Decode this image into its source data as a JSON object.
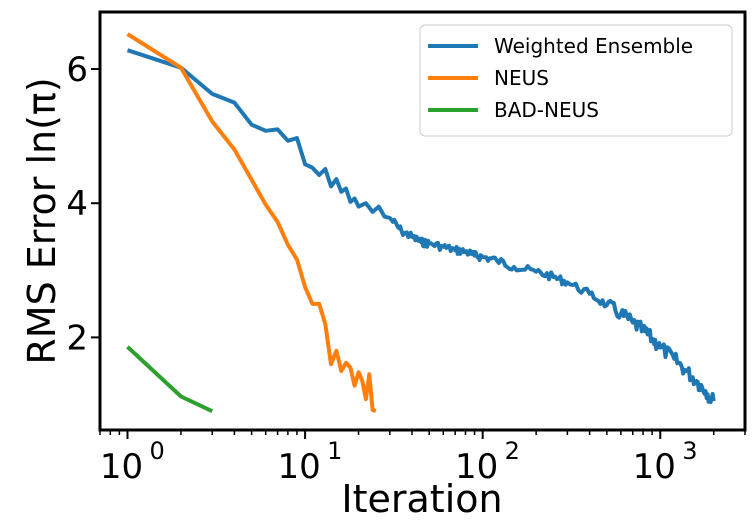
{
  "chart_data": {
    "type": "line",
    "title": "",
    "xlabel": "Iteration",
    "ylabel": "RMS Error ln(π)",
    "xscale": "log",
    "xlim": [
      0.7,
      3000
    ],
    "ylim": [
      0.62,
      6.85
    ],
    "x_ticks": [
      {
        "value": 1,
        "base": "10",
        "exp": "0"
      },
      {
        "value": 10,
        "base": "10",
        "exp": "1"
      },
      {
        "value": 100,
        "base": "10",
        "exp": "2"
      },
      {
        "value": 1000,
        "base": "10",
        "exp": "3"
      }
    ],
    "y_ticks": [
      {
        "value": 2,
        "label": "2"
      },
      {
        "value": 4,
        "label": "4"
      },
      {
        "value": 6,
        "label": "6"
      }
    ],
    "legend_position": "top-right",
    "series": [
      {
        "name": "Weighted Ensemble",
        "color": "#1f77b4",
        "x": [
          1,
          2,
          3,
          4,
          5,
          6,
          7,
          8,
          9,
          10,
          11,
          12,
          13,
          14,
          15,
          16,
          17,
          18,
          19,
          20,
          22,
          24,
          26,
          28,
          30,
          35,
          40,
          45,
          50,
          60,
          70,
          80,
          90,
          100,
          120,
          150,
          200,
          250,
          300,
          400,
          500,
          600,
          700,
          800,
          900,
          1000,
          1200,
          1400,
          1600,
          1800,
          2000
        ],
        "y": [
          6.28,
          6.02,
          5.63,
          5.5,
          5.17,
          5.08,
          5.1,
          4.93,
          4.97,
          4.58,
          4.53,
          4.42,
          4.51,
          4.25,
          4.36,
          4.17,
          4.22,
          4.02,
          4.07,
          3.95,
          4.0,
          3.87,
          3.95,
          3.8,
          3.78,
          3.58,
          3.5,
          3.42,
          3.4,
          3.35,
          3.3,
          3.28,
          3.22,
          3.2,
          3.15,
          3.05,
          2.98,
          2.9,
          2.82,
          2.65,
          2.48,
          2.35,
          2.22,
          2.1,
          1.98,
          1.85,
          1.68,
          1.5,
          1.35,
          1.2,
          1.05
        ]
      },
      {
        "name": "NEUS",
        "color": "#ff7f0e",
        "x": [
          1,
          2,
          3,
          4,
          5,
          6,
          7,
          8,
          9,
          10,
          11,
          12,
          13,
          14,
          15,
          16,
          17,
          18,
          19,
          20,
          21,
          22,
          23,
          24,
          25
        ],
        "y": [
          6.52,
          6.02,
          5.22,
          4.8,
          4.35,
          3.98,
          3.72,
          3.38,
          3.16,
          2.75,
          2.5,
          2.5,
          2.2,
          1.6,
          1.8,
          1.5,
          1.62,
          1.55,
          1.28,
          1.48,
          1.35,
          1.08,
          1.45,
          0.92,
          0.9
        ]
      },
      {
        "name": "BAD-NEUS",
        "color": "#2ca02c",
        "x": [
          1,
          2,
          3
        ],
        "y": [
          1.86,
          1.12,
          0.9
        ]
      }
    ]
  }
}
